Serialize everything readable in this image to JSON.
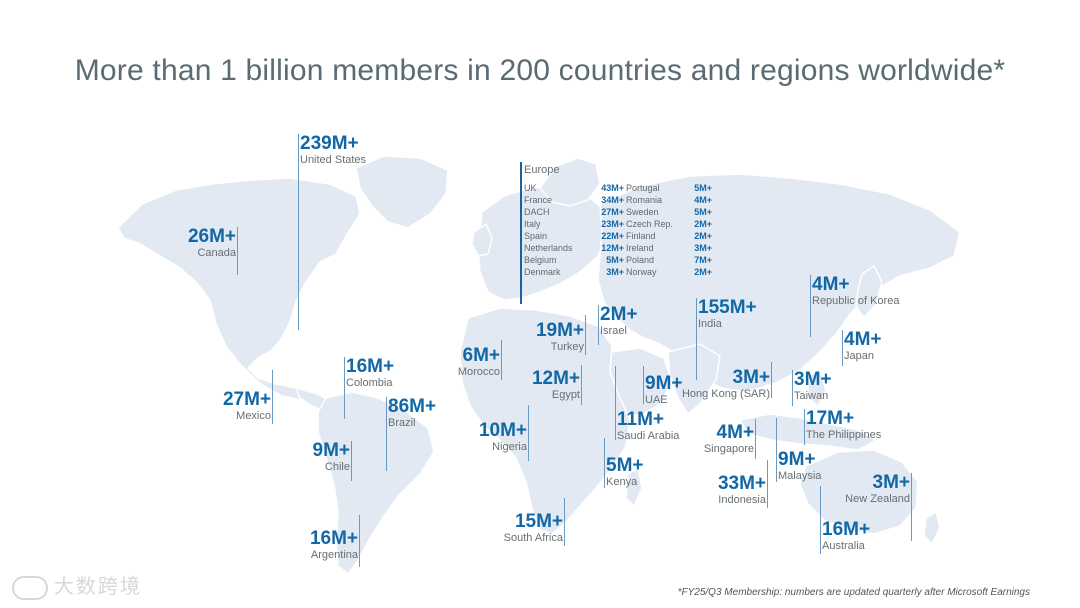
{
  "title": "More than 1 billion members in 200 countries and regions worldwide*",
  "footnote": "*FY25/Q3 Membership: numbers are updated quarterly after Microsoft Earnings",
  "watermark": "大数跨境",
  "colors": {
    "value": "#1267a6",
    "label": "#666f73",
    "map": "#e2e9f2",
    "title": "#5a6b73"
  },
  "countries": [
    {
      "id": "united-states",
      "value": "239M+",
      "name": "United States"
    },
    {
      "id": "canada",
      "value": "26M+",
      "name": "Canada"
    },
    {
      "id": "mexico",
      "value": "27M+",
      "name": "Mexico"
    },
    {
      "id": "colombia",
      "value": "16M+",
      "name": "Colombia"
    },
    {
      "id": "brazil",
      "value": "86M+",
      "name": "Brazil"
    },
    {
      "id": "chile",
      "value": "9M+",
      "name": "Chile"
    },
    {
      "id": "argentina",
      "value": "16M+",
      "name": "Argentina"
    },
    {
      "id": "morocco",
      "value": "6M+",
      "name": "Morocco"
    },
    {
      "id": "turkey",
      "value": "19M+",
      "name": "Turkey"
    },
    {
      "id": "israel",
      "value": "2M+",
      "name": "Israel"
    },
    {
      "id": "egypt",
      "value": "12M+",
      "name": "Egypt"
    },
    {
      "id": "nigeria",
      "value": "10M+",
      "name": "Nigeria"
    },
    {
      "id": "uae",
      "value": "9M+",
      "name": "UAE"
    },
    {
      "id": "saudi-arabia",
      "value": "11M+",
      "name": "Saudi Arabia"
    },
    {
      "id": "kenya",
      "value": "5M+",
      "name": "Kenya"
    },
    {
      "id": "south-africa",
      "value": "15M+",
      "name": "South Africa"
    },
    {
      "id": "india",
      "value": "155M+",
      "name": "India"
    },
    {
      "id": "hong-kong",
      "value": "3M+",
      "name": "Hong Kong (SAR)"
    },
    {
      "id": "singapore",
      "value": "4M+",
      "name": "Singapore"
    },
    {
      "id": "malaysia",
      "value": "9M+",
      "name": "Malaysia"
    },
    {
      "id": "indonesia",
      "value": "33M+",
      "name": "Indonesia"
    },
    {
      "id": "korea",
      "value": "4M+",
      "name": "Republic of Korea"
    },
    {
      "id": "japan",
      "value": "4M+",
      "name": "Japan"
    },
    {
      "id": "taiwan",
      "value": "3M+",
      "name": "Taiwan"
    },
    {
      "id": "philippines",
      "value": "17M+",
      "name": "The Philippines"
    },
    {
      "id": "new-zealand",
      "value": "3M+",
      "name": "New Zealand"
    },
    {
      "id": "australia",
      "value": "16M+",
      "name": "Australia"
    }
  ],
  "europe": {
    "heading": "Europe",
    "col1": [
      {
        "name": "UK",
        "value": "43M+"
      },
      {
        "name": "France",
        "value": "34M+"
      },
      {
        "name": "DACH",
        "value": "27M+"
      },
      {
        "name": "Italy",
        "value": "23M+"
      },
      {
        "name": "Spain",
        "value": "22M+"
      },
      {
        "name": "Netherlands",
        "value": "12M+"
      },
      {
        "name": "Belgium",
        "value": "5M+"
      },
      {
        "name": "Denmark",
        "value": "3M+"
      }
    ],
    "col2": [
      {
        "name": "Portugal",
        "value": "5M+"
      },
      {
        "name": "Romania",
        "value": "4M+"
      },
      {
        "name": "Sweden",
        "value": "5M+"
      },
      {
        "name": "Czech Rep.",
        "value": "2M+"
      },
      {
        "name": "Finland",
        "value": "2M+"
      },
      {
        "name": "Ireland",
        "value": "3M+"
      },
      {
        "name": "Poland",
        "value": "7M+"
      },
      {
        "name": "Norway",
        "value": "2M+"
      }
    ]
  }
}
